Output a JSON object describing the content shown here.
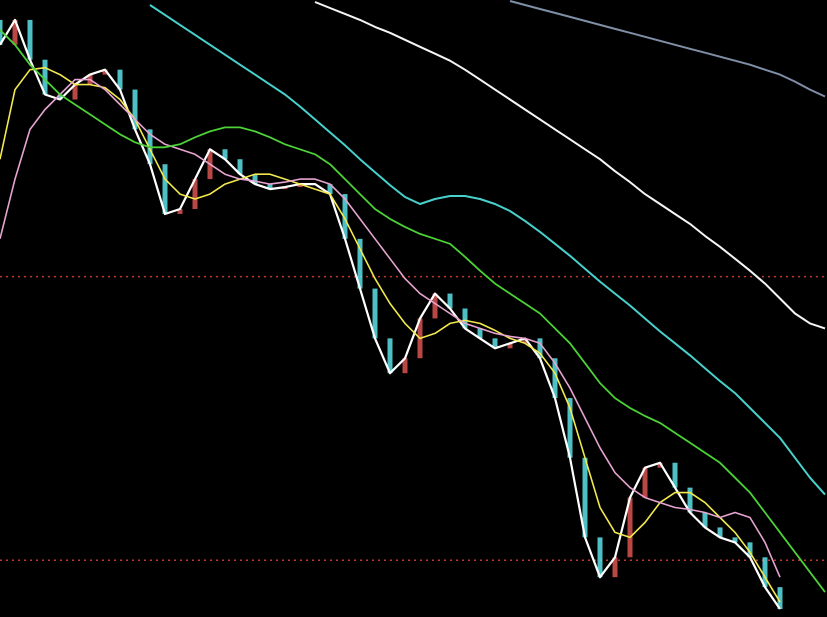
{
  "chart_data": {
    "type": "candlestick",
    "x": [
      0,
      1,
      2,
      3,
      4,
      5,
      6,
      7,
      8,
      9,
      10,
      11,
      12,
      13,
      14,
      15,
      16,
      17,
      18,
      19,
      20,
      21,
      22,
      23,
      24,
      25,
      26,
      27,
      28,
      29,
      30,
      31,
      32,
      33,
      34,
      35,
      36,
      37,
      38,
      39,
      40,
      41,
      42,
      43,
      44,
      45,
      46,
      47,
      48,
      49,
      50,
      51,
      52,
      53,
      54,
      55
    ],
    "xlim": [
      0,
      55
    ],
    "ylim": [
      0,
      62
    ],
    "background": "#000000",
    "candles": {
      "up_color": "#d9534f",
      "down_color": "#5ce1e6",
      "open": [
        60,
        57.5,
        60,
        56,
        52.5,
        52,
        53.5,
        54.5,
        55,
        53,
        49,
        45.5,
        40.5,
        41,
        44,
        47,
        46,
        44.5,
        43.5,
        43,
        43.2,
        43.5,
        43.5,
        42.5,
        38,
        33,
        28,
        24.5,
        26,
        30,
        32.5,
        31,
        29,
        28,
        27,
        27.5,
        28,
        26,
        22,
        16,
        8,
        4,
        6,
        12,
        15,
        15.5,
        13,
        10.5,
        9,
        8,
        7.5,
        6,
        3,
        null,
        null,
        null
      ],
      "close": [
        57.5,
        60,
        56,
        52.5,
        52,
        53.5,
        54.5,
        55,
        53,
        49,
        45.5,
        40.5,
        41,
        44,
        47,
        46,
        44.5,
        43.5,
        43,
        43.2,
        43.5,
        43.5,
        42.5,
        38,
        33,
        28,
        24.5,
        26,
        30,
        32.5,
        31,
        29,
        28,
        27,
        27.5,
        28,
        26,
        22,
        16,
        8,
        4,
        6,
        12,
        15,
        15.5,
        13,
        10.5,
        9,
        8,
        7.5,
        6,
        3,
        0.8,
        null,
        null,
        null
      ]
    },
    "hlines": {
      "color": "#c0392b",
      "values": [
        34.2,
        5.7
      ]
    },
    "series": [
      {
        "color": "#ffffff",
        "width": 2.2,
        "values": [
          57.5,
          60,
          56,
          52.5,
          52,
          53.5,
          54.5,
          55,
          53,
          49,
          45.5,
          40.5,
          41,
          44,
          47,
          46,
          44.5,
          43.5,
          43,
          43.2,
          43.5,
          43.5,
          42.5,
          38,
          33,
          28,
          24.5,
          26,
          30,
          32.5,
          31,
          29,
          28,
          27,
          27.5,
          28,
          26,
          22,
          16,
          8,
          4,
          6,
          12,
          15,
          15.5,
          13,
          10.5,
          9,
          8,
          7.5,
          6,
          3,
          0.8,
          null,
          null,
          null
        ]
      },
      {
        "color": "#f2e94e",
        "width": 1.6,
        "values": [
          46,
          53,
          55,
          55.2,
          54.5,
          53.5,
          53.5,
          53.2,
          52,
          50,
          47,
          44,
          42.5,
          42,
          42.5,
          43.5,
          44,
          44.5,
          44.5,
          44,
          43.5,
          43,
          42.5,
          40,
          37,
          34,
          31.5,
          29.5,
          28,
          28.5,
          29.5,
          29.8,
          29.5,
          28.8,
          28,
          27.5,
          26.5,
          24.5,
          21,
          16,
          11,
          8.5,
          8,
          9.5,
          11.5,
          12.5,
          12.5,
          11.5,
          10,
          8.5,
          6.5,
          4,
          1.5,
          null,
          null,
          null
        ]
      },
      {
        "color": "#e6a4d0",
        "width": 1.6,
        "values": [
          38,
          44,
          49,
          51,
          52.5,
          54,
          54,
          53,
          51.5,
          50,
          48.5,
          47.5,
          47,
          46.5,
          45.5,
          44.5,
          44,
          43.8,
          43.5,
          43.7,
          44,
          44,
          43.5,
          42,
          40,
          38,
          36,
          34,
          32.5,
          31.5,
          30.5,
          29.5,
          29,
          28.5,
          28.2,
          28,
          27.5,
          25.5,
          23,
          20,
          17,
          14.5,
          13,
          12,
          11.5,
          11,
          10.8,
          10.5,
          10,
          10.5,
          10,
          7.5,
          4,
          null,
          null,
          null
        ]
      },
      {
        "color": "#4cd137",
        "width": 1.8,
        "values": [
          59,
          57.5,
          55.5,
          54,
          52.5,
          51.5,
          50.5,
          49.5,
          48.5,
          47.7,
          47.2,
          47.2,
          47.5,
          48.2,
          48.8,
          49.2,
          49.2,
          48.8,
          48.2,
          47.5,
          47,
          46.5,
          45.5,
          44,
          42.5,
          41,
          40,
          39.2,
          38.5,
          38,
          37.5,
          36.2,
          34.8,
          33.5,
          32.5,
          31.5,
          30.5,
          29,
          27.5,
          25.5,
          23.5,
          22,
          21,
          20.2,
          19.5,
          18.5,
          17.5,
          16.5,
          15.5,
          14,
          12.5,
          10.5,
          8.5,
          6.5,
          4.5,
          2.5
        ]
      },
      {
        "color": "#48d1cc",
        "width": 2,
        "values": [
          null,
          null,
          null,
          null,
          null,
          null,
          null,
          null,
          null,
          null,
          61.5,
          60.5,
          59.5,
          58.5,
          57.5,
          56.5,
          55.5,
          54.5,
          53.5,
          52.5,
          51.3,
          50,
          48.7,
          47.4,
          46,
          44.7,
          43.4,
          42.2,
          41.5,
          42,
          42.3,
          42.3,
          42,
          41.5,
          40.8,
          39.8,
          38.7,
          37.5,
          36.3,
          35,
          33.7,
          32.5,
          31.3,
          30,
          28.7,
          27.5,
          26.3,
          25,
          23.7,
          22.5,
          21,
          19.5,
          18,
          16,
          14,
          12.3
        ]
      },
      {
        "color": "#f5f5f5",
        "width": 2,
        "values": [
          null,
          null,
          null,
          null,
          null,
          null,
          null,
          null,
          null,
          null,
          null,
          null,
          null,
          null,
          null,
          null,
          null,
          null,
          null,
          null,
          null,
          61.8,
          61.2,
          60.6,
          60,
          59.3,
          58.7,
          58,
          57.3,
          56.6,
          55.9,
          55,
          54,
          53,
          52,
          51,
          50,
          49,
          48,
          47,
          46,
          44.8,
          43.7,
          42.5,
          41.5,
          40.5,
          39.5,
          38.3,
          37.2,
          36,
          34.8,
          33.5,
          32,
          30.5,
          29.5,
          29
        ]
      },
      {
        "color": "#7f8fa6",
        "width": 2,
        "values": [
          null,
          null,
          null,
          null,
          null,
          null,
          null,
          null,
          null,
          null,
          null,
          null,
          null,
          null,
          null,
          null,
          null,
          null,
          null,
          null,
          null,
          null,
          null,
          null,
          null,
          null,
          null,
          null,
          null,
          null,
          null,
          null,
          null,
          null,
          61.9,
          61.5,
          61.1,
          60.7,
          60.3,
          59.9,
          59.5,
          59.1,
          58.7,
          58.3,
          57.9,
          57.5,
          57.1,
          56.7,
          56.3,
          55.9,
          55.5,
          55,
          54.5,
          53.8,
          53,
          52.3
        ]
      }
    ]
  }
}
